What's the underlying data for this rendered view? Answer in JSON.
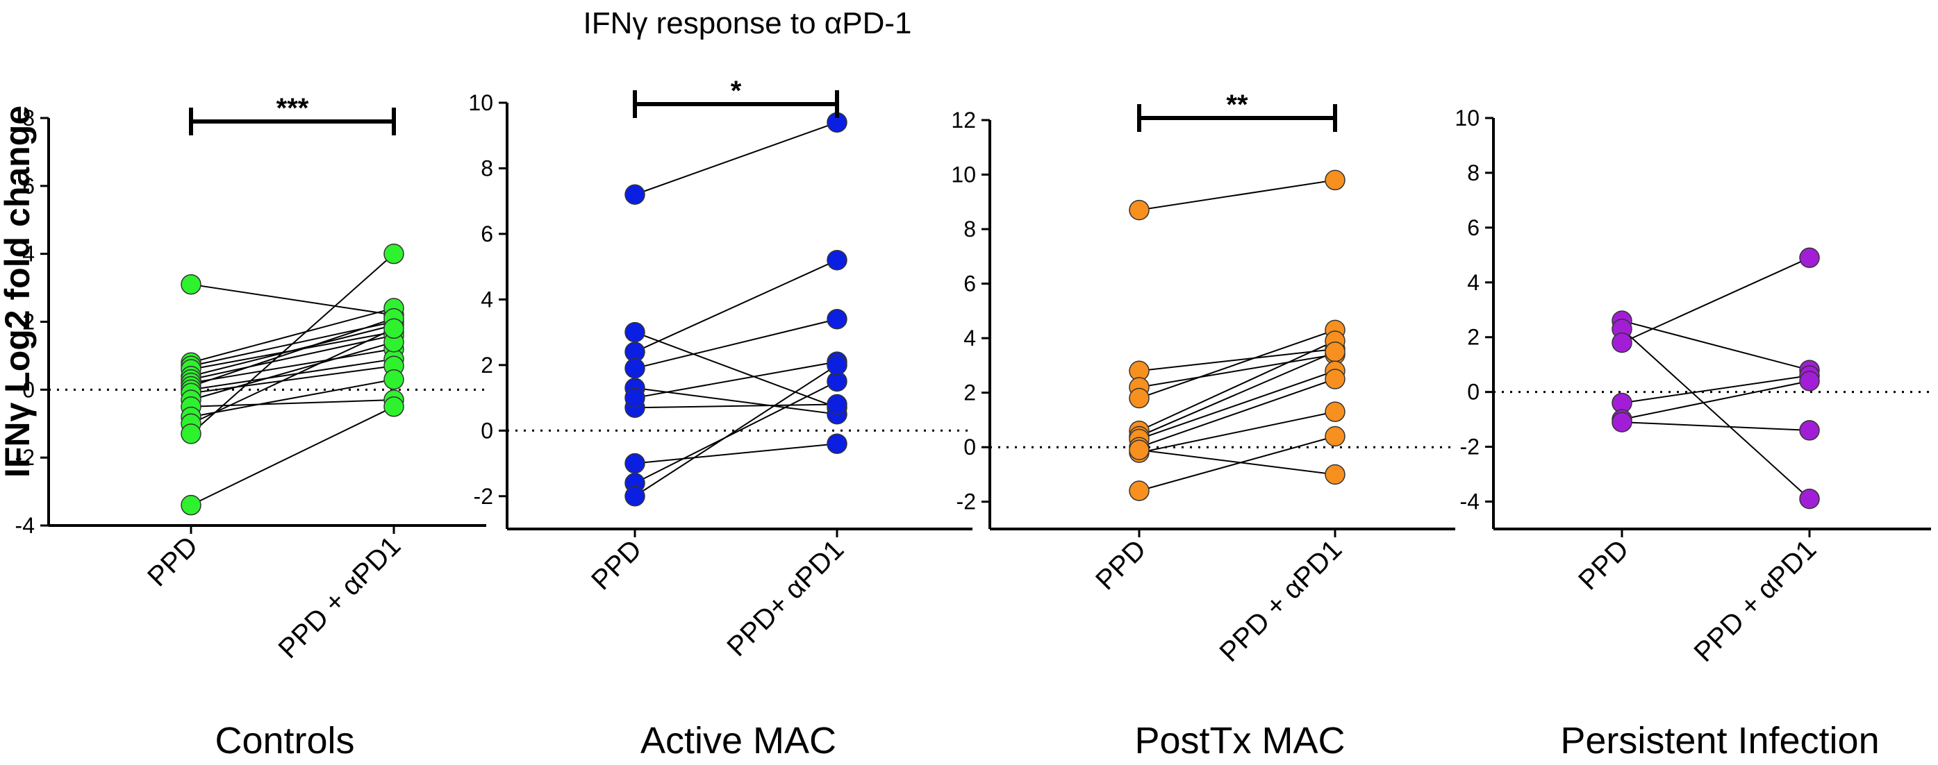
{
  "chart_data": {
    "type": "paired-dot",
    "title": "IFNγ response to αPD-1",
    "ylabel": "IFNγ Log2 fold change",
    "panels": [
      {
        "group": "Controls",
        "categories": [
          "PPD",
          "PPD + αPD1"
        ],
        "color": "#2ef22e",
        "ylim": [
          -4,
          8
        ],
        "yticks": [
          -4,
          -2,
          0,
          2,
          4,
          6,
          8
        ],
        "tick_labels": [
          "-4",
          "-2",
          "0",
          "2",
          "4",
          "6",
          "8"
        ],
        "significance": "***",
        "pairs": [
          [
            3.1,
            2.2
          ],
          [
            0.8,
            2.4
          ],
          [
            0.7,
            2.0
          ],
          [
            0.6,
            1.7
          ],
          [
            0.4,
            1.9
          ],
          [
            0.3,
            1.6
          ],
          [
            0.2,
            1.2
          ],
          [
            0.1,
            2.1
          ],
          [
            0.0,
            0.9
          ],
          [
            -0.1,
            0.7
          ],
          [
            -0.3,
            1.4
          ],
          [
            -0.5,
            -0.3
          ],
          [
            -0.8,
            0.3
          ],
          [
            -1.0,
            1.8
          ],
          [
            -1.3,
            4.0
          ],
          [
            -3.4,
            -0.5
          ]
        ]
      },
      {
        "group": "Active MAC",
        "categories": [
          "PPD",
          "PPD+ αPD1"
        ],
        "color": "#0b1fe3",
        "ylim": [
          -3,
          10
        ],
        "yticks": [
          -2,
          0,
          2,
          4,
          6,
          8,
          10
        ],
        "tick_labels": [
          "-2",
          "0",
          "2",
          "4",
          "6",
          "8",
          "10"
        ],
        "significance": "*",
        "pairs": [
          [
            7.2,
            9.4
          ],
          [
            3.0,
            0.7
          ],
          [
            2.4,
            5.2
          ],
          [
            1.9,
            3.4
          ],
          [
            1.3,
            0.5
          ],
          [
            0.7,
            0.8
          ],
          [
            1.0,
            2.1
          ],
          [
            -1.0,
            -0.4
          ],
          [
            -1.6,
            1.5
          ],
          [
            -2.0,
            2.0
          ]
        ]
      },
      {
        "group": "PostTx MAC",
        "categories": [
          "PPD",
          "PPD + αPD1"
        ],
        "color": "#f7901e",
        "ylim": [
          -3,
          12
        ],
        "yticks": [
          -2,
          0,
          2,
          4,
          6,
          8,
          10,
          12
        ],
        "tick_labels": [
          "-2",
          "0",
          "2",
          "4",
          "6",
          "8",
          "10",
          "12"
        ],
        "significance": "**",
        "pairs": [
          [
            8.7,
            9.8
          ],
          [
            2.8,
            3.6
          ],
          [
            2.2,
            3.4
          ],
          [
            1.8,
            4.3
          ],
          [
            0.6,
            3.9
          ],
          [
            0.4,
            3.5
          ],
          [
            0.3,
            2.8
          ],
          [
            0.0,
            2.5
          ],
          [
            -0.2,
            1.3
          ],
          [
            -0.1,
            -1.0
          ],
          [
            -1.6,
            0.4
          ]
        ]
      },
      {
        "group": "Persistent Infection",
        "categories": [
          "PPD",
          "PPD + αPD1"
        ],
        "color": "#a21ed6",
        "ylim": [
          -5,
          10
        ],
        "yticks": [
          -4,
          -2,
          0,
          2,
          4,
          6,
          8,
          10
        ],
        "tick_labels": [
          "-4",
          "-2",
          "0",
          "2",
          "4",
          "6",
          "8",
          "10"
        ],
        "significance": "",
        "pairs": [
          [
            2.6,
            0.8
          ],
          [
            2.3,
            -3.9
          ],
          [
            1.8,
            4.9
          ],
          [
            -0.4,
            0.6
          ],
          [
            -1.0,
            0.4
          ],
          [
            -1.1,
            -1.4
          ]
        ]
      }
    ]
  }
}
